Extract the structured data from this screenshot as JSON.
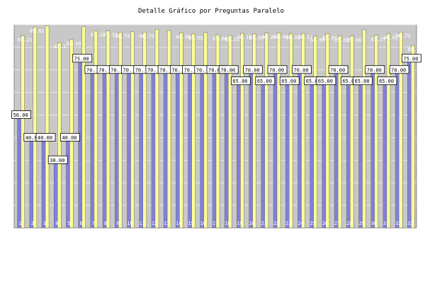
{
  "chart_data": {
    "type": "bar",
    "title": "Detalle Gráfico por Preguntas Paralelo",
    "xlabel": "",
    "ylabel": "",
    "ylim": [
      0,
      90
    ],
    "yticks": [
      10,
      20,
      30,
      40,
      50,
      60,
      70,
      80,
      90
    ],
    "grid": true,
    "legend": "none",
    "categories": [
      "1",
      "2",
      "3",
      "4",
      "5",
      "6",
      "7",
      "8",
      "9",
      "10",
      "11",
      "12",
      "13",
      "14",
      "15",
      "16",
      "17",
      "18",
      "19",
      "20",
      "21",
      "22",
      "23",
      "24",
      "25",
      "26",
      "27",
      "28",
      "29",
      "30",
      "31",
      "32",
      "33"
    ],
    "series": [
      {
        "color": "#8080e0",
        "values": [
          50,
          40,
          40,
          30,
          40,
          75,
          70,
          70,
          70,
          70,
          70,
          70,
          70,
          70,
          70,
          70,
          70,
          70,
          65,
          70,
          65,
          70,
          65,
          70,
          65,
          65,
          70,
          65,
          65,
          70,
          65,
          70,
          75
        ],
        "labels": [
          "50.00",
          "40.00",
          "40.00",
          "30.00",
          "40.00",
          "75.00",
          "70.",
          "70.",
          "70.",
          "70.",
          "70.",
          "70.",
          "70.",
          "70.",
          "70.",
          "70.",
          "70.00",
          "70.00",
          "65.00",
          "70.00",
          "65.00",
          "70.00",
          "65.00",
          "70.00",
          "65.00",
          "65.00",
          "70.00",
          "65.00",
          "65.00",
          "70.00",
          "65.00",
          "70.00",
          "75.00"
        ]
      },
      {
        "color": "#ffff99",
        "values": [
          85.21,
          89.02,
          89.5,
          82.1,
          83.49,
          89.2,
          87.32,
          87.32,
          86.74,
          87.0,
          86.78,
          88.0,
          87.46,
          86.46,
          85.95,
          86.5,
          85.6,
          85.31,
          86.19,
          85.97,
          86.3,
          86.46,
          86.05,
          86.17,
          84.99,
          85.99,
          85.02,
          85.06,
          87.8,
          85.37,
          86.02,
          86.79,
          80.77
        ],
        "labels": [
          "85.21",
          "89.02",
          "",
          "82.1",
          "83.49",
          "",
          "87.32",
          "87.32",
          "86.74",
          "",
          "86.78",
          "",
          "",
          "86.46",
          "85.95",
          "",
          "85.60",
          "85.31",
          "86.19",
          "85.97",
          "86.30",
          "86.46",
          "86.05",
          "86.17",
          "84.99",
          "85.99",
          "85.02",
          "85.06",
          "",
          "85.37",
          "86.02",
          "86.79",
          "80.77"
        ]
      }
    ]
  }
}
